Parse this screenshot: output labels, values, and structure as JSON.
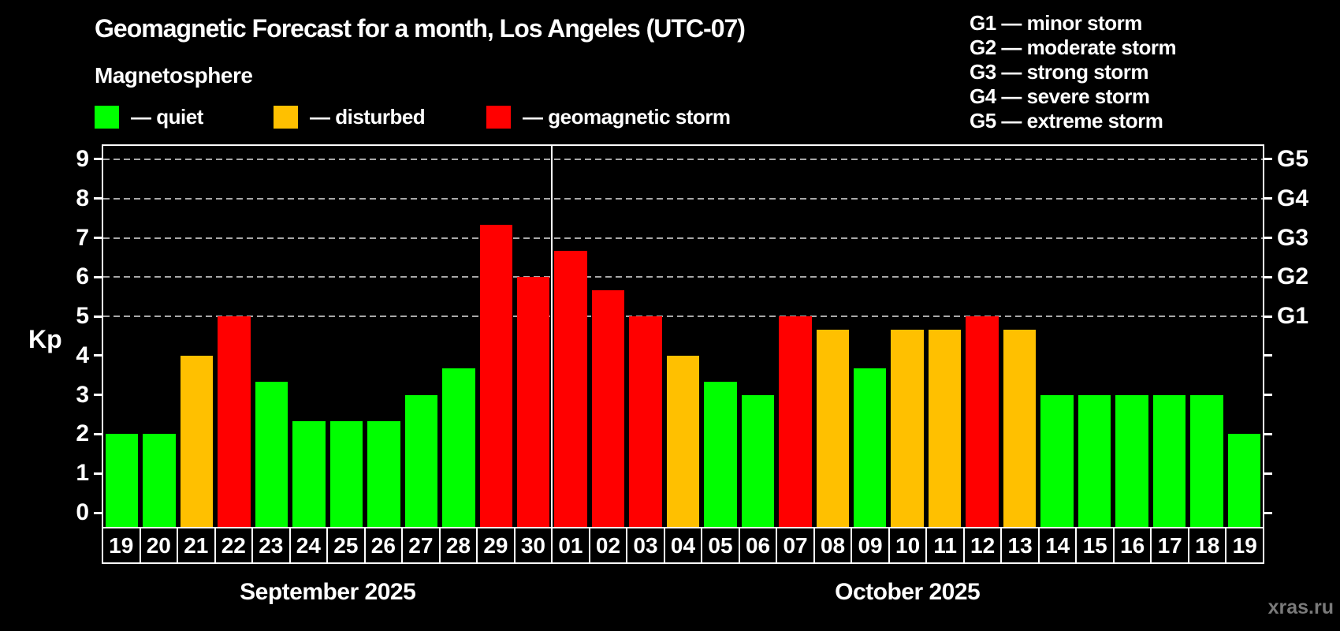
{
  "header": {
    "title": "Geomagnetic Forecast for a month, Los Angeles (UTC-07)",
    "subtitle": "Magnetosphere"
  },
  "legend": {
    "items": [
      {
        "name": "quiet",
        "label": "— quiet",
        "color": "#00ff00"
      },
      {
        "name": "disturbed",
        "label": "— disturbed",
        "color": "#ffc000"
      },
      {
        "name": "storm",
        "label": "— geomagnetic storm",
        "color": "#ff0000"
      }
    ]
  },
  "g_legend": {
    "items": [
      "G1 — minor storm",
      "G2 — moderate storm",
      "G3 — strong storm",
      "G4 — severe storm",
      "G5 — extreme storm"
    ]
  },
  "watermark": "xras.ru",
  "chart_data": {
    "type": "bar",
    "title": "Geomagnetic Forecast for a month, Los Angeles (UTC-07)",
    "subtitle": "Magnetosphere",
    "ylabel": "Kp",
    "ylim": [
      -0.36,
      9.34
    ],
    "y_ticks": [
      0,
      1,
      2,
      3,
      4,
      5,
      6,
      7,
      8,
      9
    ],
    "gridlines": {
      "values": [
        5,
        6,
        7,
        8,
        9
      ],
      "style": "dashed",
      "color": "#a8a8a8"
    },
    "right_axis_labels": [
      {
        "value": 5,
        "label": "G1"
      },
      {
        "value": 6,
        "label": "G2"
      },
      {
        "value": 7,
        "label": "G3"
      },
      {
        "value": 8,
        "label": "G4"
      },
      {
        "value": 9,
        "label": "G5"
      }
    ],
    "months": [
      {
        "label": "September 2025",
        "days": [
          "19",
          "20",
          "21",
          "22",
          "23",
          "24",
          "25",
          "26",
          "27",
          "28",
          "29",
          "30"
        ]
      },
      {
        "label": "October 2025",
        "days": [
          "01",
          "02",
          "03",
          "04",
          "05",
          "06",
          "07",
          "08",
          "09",
          "10",
          "11",
          "12",
          "13",
          "14",
          "15",
          "16",
          "17",
          "18",
          "19"
        ]
      }
    ],
    "points": [
      {
        "kp": 2.0,
        "status": "quiet"
      },
      {
        "kp": 2.0,
        "status": "quiet"
      },
      {
        "kp": 4.0,
        "status": "disturbed"
      },
      {
        "kp": 5.0,
        "status": "storm"
      },
      {
        "kp": 3.33,
        "status": "quiet"
      },
      {
        "kp": 2.33,
        "status": "quiet"
      },
      {
        "kp": 2.33,
        "status": "quiet"
      },
      {
        "kp": 2.33,
        "status": "quiet"
      },
      {
        "kp": 3.0,
        "status": "quiet"
      },
      {
        "kp": 3.67,
        "status": "quiet"
      },
      {
        "kp": 7.33,
        "status": "storm"
      },
      {
        "kp": 6.0,
        "status": "storm"
      },
      {
        "kp": 6.67,
        "status": "storm"
      },
      {
        "kp": 5.67,
        "status": "storm"
      },
      {
        "kp": 5.0,
        "status": "storm"
      },
      {
        "kp": 4.0,
        "status": "disturbed"
      },
      {
        "kp": 3.33,
        "status": "quiet"
      },
      {
        "kp": 3.0,
        "status": "quiet"
      },
      {
        "kp": 5.0,
        "status": "storm"
      },
      {
        "kp": 4.67,
        "status": "disturbed"
      },
      {
        "kp": 3.67,
        "status": "quiet"
      },
      {
        "kp": 4.67,
        "status": "disturbed"
      },
      {
        "kp": 4.67,
        "status": "disturbed"
      },
      {
        "kp": 5.0,
        "status": "storm"
      },
      {
        "kp": 4.67,
        "status": "disturbed"
      },
      {
        "kp": 3.0,
        "status": "quiet"
      },
      {
        "kp": 3.0,
        "status": "quiet"
      },
      {
        "kp": 3.0,
        "status": "quiet"
      },
      {
        "kp": 3.0,
        "status": "quiet"
      },
      {
        "kp": 3.0,
        "status": "quiet"
      },
      {
        "kp": 2.0,
        "status": "quiet"
      }
    ],
    "status_colors": {
      "quiet": "#00ff00",
      "disturbed": "#ffc000",
      "storm": "#ff0000"
    }
  }
}
